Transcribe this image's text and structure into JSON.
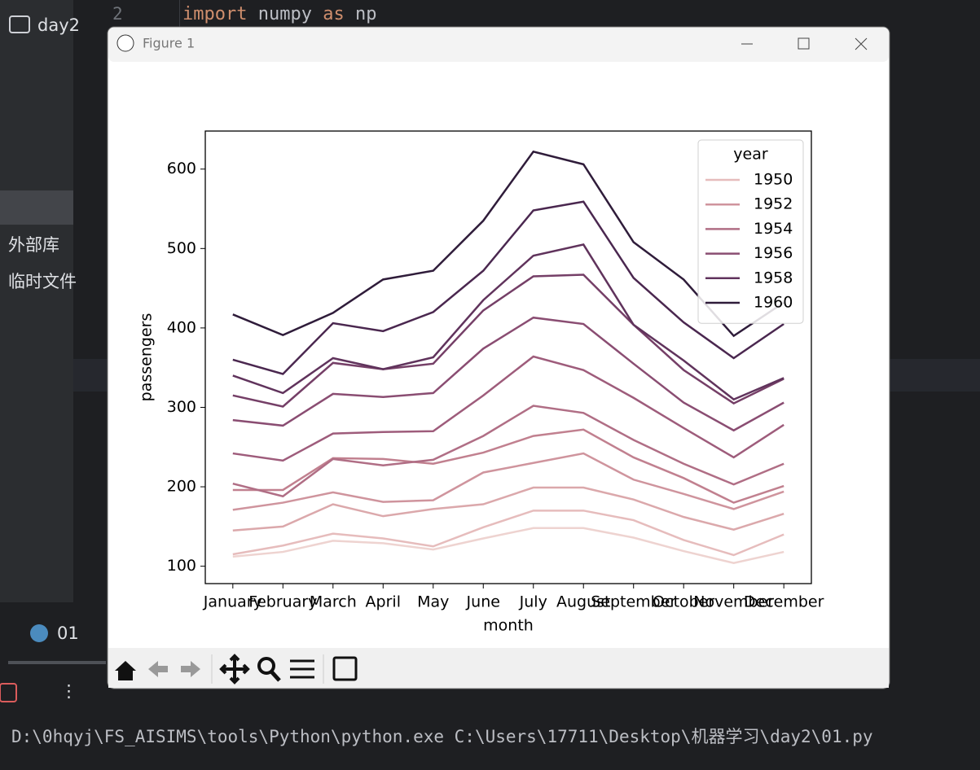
{
  "ide": {
    "project": "day2",
    "external_libraries": "外部库",
    "scratches": "临时文件",
    "code_line_number": 2,
    "code_tokens": [
      "import",
      "numpy",
      "as",
      "np"
    ],
    "run_tab": "01",
    "terminal": "D:\\0hqyj\\FS_AISIMS\\tools\\Python\\python.exe C:\\Users\\17711\\Desktop\\机器学习\\day2\\01.py"
  },
  "window": {
    "title": "Figure 1"
  },
  "chart_data": {
    "type": "line",
    "xlabel": "month",
    "ylabel": "passengers",
    "legend_title": "year",
    "legend": "upper right",
    "categories": [
      "January",
      "February",
      "March",
      "April",
      "May",
      "June",
      "July",
      "August",
      "September",
      "October",
      "November",
      "December"
    ],
    "ylim": [
      78.1,
      647.9
    ],
    "yticks": [
      100,
      200,
      300,
      400,
      500,
      600
    ],
    "series": [
      {
        "color": "#eed3d0",
        "values": [
          112,
          118,
          132,
          129,
          121,
          135,
          148,
          148,
          136,
          119,
          104,
          118
        ]
      },
      {
        "name": "1950",
        "color": "#e6bcbc",
        "values": [
          115,
          126,
          141,
          135,
          125,
          149,
          170,
          170,
          158,
          133,
          114,
          140
        ]
      },
      {
        "color": "#dba8ab",
        "values": [
          145,
          150,
          178,
          163,
          172,
          178,
          199,
          199,
          184,
          162,
          146,
          166
        ]
      },
      {
        "name": "1952",
        "color": "#cf949d",
        "values": [
          171,
          180,
          193,
          181,
          183,
          218,
          230,
          242,
          209,
          191,
          172,
          194
        ]
      },
      {
        "color": "#c1808f",
        "values": [
          196,
          196,
          236,
          235,
          229,
          243,
          264,
          272,
          237,
          211,
          180,
          201
        ]
      },
      {
        "name": "1954",
        "color": "#b06e85",
        "values": [
          204,
          188,
          235,
          227,
          234,
          264,
          302,
          293,
          259,
          229,
          203,
          229
        ]
      },
      {
        "color": "#9e5c7b",
        "values": [
          242,
          233,
          267,
          269,
          270,
          315,
          364,
          347,
          312,
          274,
          237,
          278
        ]
      },
      {
        "name": "1956",
        "color": "#8a4d72",
        "values": [
          284,
          277,
          317,
          313,
          318,
          374,
          413,
          405,
          355,
          306,
          271,
          306
        ]
      },
      {
        "color": "#753f67",
        "values": [
          315,
          301,
          356,
          348,
          355,
          422,
          465,
          467,
          404,
          347,
          305,
          336
        ]
      },
      {
        "name": "1958",
        "color": "#60335c",
        "values": [
          340,
          318,
          362,
          348,
          363,
          435,
          491,
          505,
          404,
          359,
          310,
          337
        ]
      },
      {
        "color": "#4a274f",
        "values": [
          360,
          342,
          406,
          396,
          420,
          472,
          548,
          559,
          463,
          407,
          362,
          405
        ]
      },
      {
        "name": "1960",
        "color": "#2f1c3a",
        "values": [
          417,
          391,
          419,
          461,
          472,
          535,
          622,
          606,
          508,
          461,
          390,
          432
        ]
      }
    ]
  }
}
